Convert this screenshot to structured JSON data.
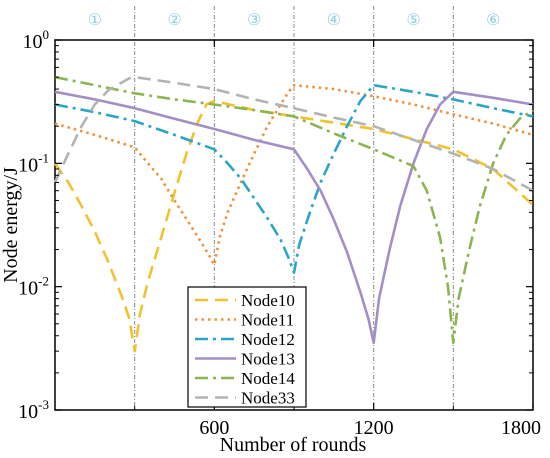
{
  "chart_data": {
    "type": "line",
    "xlabel": "Number of rounds",
    "ylabel": "Node energy/J",
    "xlim": [
      0,
      1800
    ],
    "ylim": [
      0.001,
      1
    ],
    "yscale": "log",
    "x_ticks": [
      600,
      1200,
      1800
    ],
    "x_tick_labels": [
      "600",
      "1200",
      "1800"
    ],
    "y_ticks": [
      0.001,
      0.01,
      0.1,
      1
    ],
    "y_tick_labels": [
      {
        "base": "10",
        "exp": "-3"
      },
      {
        "base": "10",
        "exp": "-2"
      },
      {
        "base": "10",
        "exp": "-1"
      },
      {
        "base": "10",
        "exp": "0"
      }
    ],
    "phase_boundaries": [
      300,
      600,
      900,
      1200,
      1500
    ],
    "phase_labels": [
      "①",
      "②",
      "③",
      "④",
      "⑤",
      "⑥"
    ],
    "legend_position": "bottom-center",
    "series": [
      {
        "name": "Node10",
        "color": "#f2c12e",
        "dash": "13,7",
        "width": 2.6,
        "points": [
          [
            0,
            0.1
          ],
          [
            50,
            0.07
          ],
          [
            100,
            0.045
          ],
          [
            150,
            0.028
          ],
          [
            200,
            0.016
          ],
          [
            250,
            0.0085
          ],
          [
            280,
            0.0055
          ],
          [
            300,
            0.003
          ],
          [
            320,
            0.006
          ],
          [
            350,
            0.011
          ],
          [
            400,
            0.025
          ],
          [
            450,
            0.058
          ],
          [
            500,
            0.13
          ],
          [
            540,
            0.22
          ],
          [
            570,
            0.3
          ],
          [
            600,
            0.32
          ],
          [
            750,
            0.27
          ],
          [
            900,
            0.24
          ],
          [
            1200,
            0.19
          ],
          [
            1500,
            0.13
          ],
          [
            1650,
            0.09
          ],
          [
            1800,
            0.046
          ]
        ]
      },
      {
        "name": "Node11",
        "color": "#f0913c",
        "dash": "2.5,4",
        "width": 2.6,
        "points": [
          [
            0,
            0.21
          ],
          [
            150,
            0.17
          ],
          [
            300,
            0.135
          ],
          [
            350,
            0.1
          ],
          [
            400,
            0.075
          ],
          [
            450,
            0.05
          ],
          [
            500,
            0.034
          ],
          [
            550,
            0.023
          ],
          [
            580,
            0.018
          ],
          [
            600,
            0.015
          ],
          [
            620,
            0.025
          ],
          [
            650,
            0.04
          ],
          [
            700,
            0.07
          ],
          [
            750,
            0.12
          ],
          [
            800,
            0.2
          ],
          [
            850,
            0.3
          ],
          [
            880,
            0.38
          ],
          [
            900,
            0.43
          ],
          [
            1050,
            0.4
          ],
          [
            1200,
            0.35
          ],
          [
            1350,
            0.3
          ],
          [
            1500,
            0.25
          ],
          [
            1650,
            0.21
          ],
          [
            1800,
            0.17
          ]
        ]
      },
      {
        "name": "Node12",
        "color": "#2aa5c6",
        "dash": "13,5,3,5",
        "width": 2.6,
        "points": [
          [
            0,
            0.3
          ],
          [
            150,
            0.26
          ],
          [
            300,
            0.22
          ],
          [
            450,
            0.17
          ],
          [
            600,
            0.13
          ],
          [
            650,
            0.1
          ],
          [
            700,
            0.075
          ],
          [
            750,
            0.052
          ],
          [
            800,
            0.036
          ],
          [
            850,
            0.024
          ],
          [
            880,
            0.017
          ],
          [
            900,
            0.013
          ],
          [
            920,
            0.022
          ],
          [
            960,
            0.04
          ],
          [
            1000,
            0.07
          ],
          [
            1050,
            0.12
          ],
          [
            1100,
            0.2
          ],
          [
            1150,
            0.32
          ],
          [
            1200,
            0.43
          ],
          [
            1350,
            0.38
          ],
          [
            1500,
            0.33
          ],
          [
            1650,
            0.28
          ],
          [
            1800,
            0.24
          ]
        ]
      },
      {
        "name": "Node13",
        "color": "#a48ec6",
        "dash": "",
        "width": 2.6,
        "points": [
          [
            0,
            0.38
          ],
          [
            150,
            0.33
          ],
          [
            300,
            0.28
          ],
          [
            450,
            0.23
          ],
          [
            600,
            0.19
          ],
          [
            750,
            0.155
          ],
          [
            900,
            0.13
          ],
          [
            950,
            0.09
          ],
          [
            1000,
            0.06
          ],
          [
            1050,
            0.035
          ],
          [
            1100,
            0.019
          ],
          [
            1150,
            0.009
          ],
          [
            1180,
            0.0055
          ],
          [
            1200,
            0.0035
          ],
          [
            1220,
            0.008
          ],
          [
            1260,
            0.02
          ],
          [
            1300,
            0.045
          ],
          [
            1350,
            0.1
          ],
          [
            1400,
            0.19
          ],
          [
            1450,
            0.3
          ],
          [
            1500,
            0.38
          ],
          [
            1650,
            0.34
          ],
          [
            1800,
            0.3
          ]
        ]
      },
      {
        "name": "Node14",
        "color": "#8cb450",
        "dash": "13,5,3,5",
        "width": 2.6,
        "points": [
          [
            0,
            0.5
          ],
          [
            150,
            0.43
          ],
          [
            300,
            0.37
          ],
          [
            450,
            0.33
          ],
          [
            600,
            0.3
          ],
          [
            750,
            0.27
          ],
          [
            900,
            0.24
          ],
          [
            1050,
            0.175
          ],
          [
            1200,
            0.13
          ],
          [
            1350,
            0.095
          ],
          [
            1400,
            0.06
          ],
          [
            1450,
            0.025
          ],
          [
            1480,
            0.01
          ],
          [
            1500,
            0.0035
          ],
          [
            1520,
            0.008
          ],
          [
            1560,
            0.02
          ],
          [
            1600,
            0.045
          ],
          [
            1650,
            0.1
          ],
          [
            1700,
            0.17
          ],
          [
            1750,
            0.23
          ],
          [
            1800,
            0.27
          ]
        ]
      },
      {
        "name": "Node33",
        "color": "#b3b3b3",
        "dash": "13,7",
        "width": 2.6,
        "points": [
          [
            0,
            0.07
          ],
          [
            50,
            0.12
          ],
          [
            100,
            0.2
          ],
          [
            150,
            0.3
          ],
          [
            200,
            0.39
          ],
          [
            250,
            0.45
          ],
          [
            280,
            0.49
          ],
          [
            300,
            0.5
          ],
          [
            450,
            0.45
          ],
          [
            600,
            0.4
          ],
          [
            750,
            0.33
          ],
          [
            900,
            0.28
          ],
          [
            1050,
            0.235
          ],
          [
            1200,
            0.2
          ],
          [
            1350,
            0.155
          ],
          [
            1500,
            0.12
          ],
          [
            1650,
            0.09
          ],
          [
            1800,
            0.06
          ]
        ]
      }
    ]
  }
}
